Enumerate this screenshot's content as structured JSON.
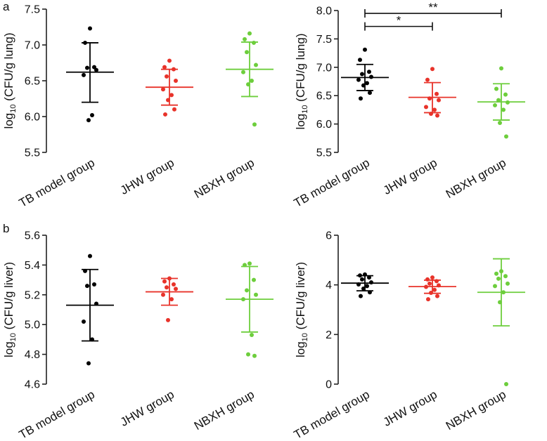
{
  "panel_labels": [
    "a",
    "b"
  ],
  "colors": {
    "tb": "#000000",
    "jhw": "#e8332a",
    "nbxh": "#6dce3c"
  },
  "chart_data": [
    {
      "type": "scatter",
      "panel": "a-left",
      "categories": [
        "TB model group",
        "JHW group",
        "NBXH group"
      ],
      "ylabel_main": "log",
      "ylabel_sub": "10",
      "ylabel_rest": " (CFU/g lung)",
      "ylim": [
        5.5,
        7.5
      ],
      "yticks": [
        5.5,
        6.0,
        6.5,
        7.0,
        7.5
      ],
      "ytick_labels": [
        "5.5",
        "6.0",
        "6.5",
        "7.0",
        "7.5"
      ],
      "series": [
        {
          "values": [
            7.23,
            7.03,
            6.69,
            6.68,
            6.65,
            6.58,
            6.02,
            5.95
          ],
          "mean": 6.62,
          "sd_low": 6.2,
          "sd_high": 7.03
        },
        {
          "values": [
            6.78,
            6.69,
            6.66,
            6.56,
            6.5,
            6.38,
            6.3,
            6.23,
            6.1,
            6.03
          ],
          "mean": 6.41,
          "sd_low": 6.16,
          "sd_high": 6.66
        },
        {
          "values": [
            7.16,
            7.08,
            7.03,
            6.9,
            6.72,
            6.62,
            6.5,
            6.45,
            5.89
          ],
          "mean": 6.66,
          "sd_low": 6.28,
          "sd_high": 7.04
        }
      ],
      "significance": []
    },
    {
      "type": "scatter",
      "panel": "a-right",
      "categories": [
        "TB model group",
        "JHW group",
        "NBXH group"
      ],
      "ylabel_main": "log",
      "ylabel_sub": "10",
      "ylabel_rest": " (CFU/g lung)",
      "ylim": [
        5.5,
        8.0
      ],
      "yticks": [
        5.5,
        6.0,
        6.5,
        7.0,
        7.5,
        8.0
      ],
      "ytick_labels": [
        "5.5",
        "6.0",
        "6.5",
        "7.0",
        "7.5",
        "8.0"
      ],
      "series": [
        {
          "values": [
            7.31,
            7.13,
            6.92,
            6.88,
            6.83,
            6.78,
            6.72,
            6.68,
            6.55,
            6.45
          ],
          "mean": 6.82,
          "sd_low": 6.59,
          "sd_high": 7.05
        },
        {
          "values": [
            6.97,
            6.78,
            6.53,
            6.45,
            6.42,
            6.3,
            6.25,
            6.18,
            6.15
          ],
          "mean": 6.47,
          "sd_low": 6.2,
          "sd_high": 6.73
        },
        {
          "values": [
            6.98,
            6.62,
            6.52,
            6.42,
            6.38,
            6.33,
            6.25,
            6.02,
            5.78
          ],
          "mean": 6.39,
          "sd_low": 6.07,
          "sd_high": 6.71
        }
      ],
      "significance": [
        {
          "from": 0,
          "to": 1,
          "y": 7.72,
          "label": "*"
        },
        {
          "from": 0,
          "to": 2,
          "y": 7.95,
          "label": "**"
        }
      ]
    },
    {
      "type": "scatter",
      "panel": "b-left",
      "categories": [
        "TB model group",
        "JHW group",
        "NBXH group"
      ],
      "ylabel_main": "log",
      "ylabel_sub": "10",
      "ylabel_rest": " (CFU/g liver)",
      "ylim": [
        4.6,
        5.6
      ],
      "yticks": [
        4.6,
        4.8,
        5.0,
        5.2,
        5.4,
        5.6
      ],
      "ytick_labels": [
        "4.6",
        "4.8",
        "5.0",
        "5.2",
        "5.4",
        "5.6"
      ],
      "series": [
        {
          "values": [
            5.46,
            5.36,
            5.27,
            5.26,
            5.14,
            5.02,
            4.9,
            4.74
          ],
          "mean": 5.13,
          "sd_low": 4.89,
          "sd_high": 5.37
        },
        {
          "values": [
            5.31,
            5.29,
            5.27,
            5.25,
            5.24,
            5.2,
            5.17,
            5.03
          ],
          "mean": 5.22,
          "sd_low": 5.13,
          "sd_high": 5.31
        },
        {
          "values": [
            5.41,
            5.4,
            5.3,
            5.23,
            5.2,
            5.17,
            4.93,
            4.8,
            4.79
          ],
          "mean": 5.17,
          "sd_low": 4.95,
          "sd_high": 5.39
        }
      ],
      "significance": []
    },
    {
      "type": "scatter",
      "panel": "b-right",
      "categories": [
        "TB model group",
        "JHW group",
        "NBXH group"
      ],
      "ylabel_main": "log",
      "ylabel_sub": "10",
      "ylabel_rest": " (CFU/g liver)",
      "ylim": [
        0,
        6
      ],
      "yticks": [
        0,
        2,
        4,
        6
      ],
      "ytick_labels": [
        "0",
        "2",
        "4",
        "6"
      ],
      "series": [
        {
          "values": [
            4.42,
            4.38,
            4.3,
            4.22,
            4.1,
            4.02,
            3.95,
            3.85,
            3.7,
            3.55
          ],
          "mean": 4.07,
          "sd_low": 3.76,
          "sd_high": 4.37
        },
        {
          "values": [
            4.3,
            4.22,
            4.15,
            4.05,
            3.98,
            3.92,
            3.8,
            3.68,
            3.55,
            3.42
          ],
          "mean": 3.93,
          "sd_low": 3.66,
          "sd_high": 4.19
        },
        {
          "values": [
            4.55,
            4.45,
            4.35,
            4.25,
            4.05,
            3.95,
            3.7,
            3.3,
            0.0
          ],
          "mean": 3.7,
          "sd_low": 2.35,
          "sd_high": 5.05
        }
      ],
      "significance": []
    }
  ]
}
